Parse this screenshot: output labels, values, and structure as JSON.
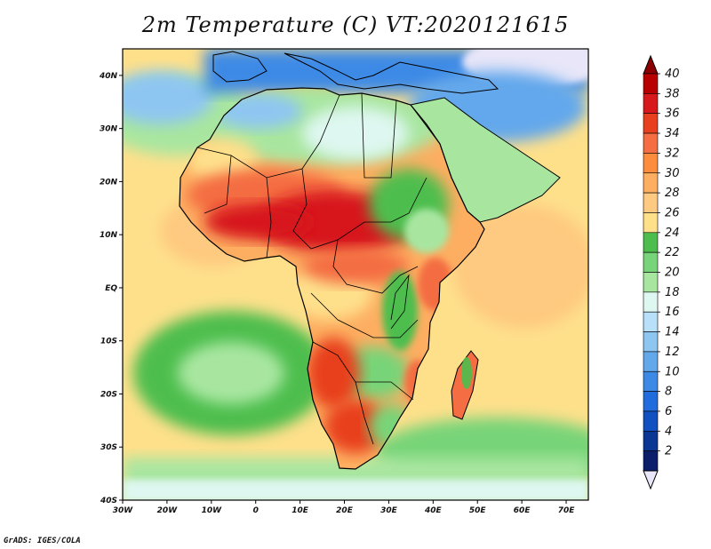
{
  "title": "2m Temperature (C) VT:2020121615",
  "footer": "GrADS: IGES/COLA",
  "map": {
    "lon_range": [
      -30,
      75
    ],
    "lat_range": [
      -40,
      45
    ],
    "x_ticks": [
      {
        "lon": -30,
        "label": "30W"
      },
      {
        "lon": -20,
        "label": "20W"
      },
      {
        "lon": -10,
        "label": "10W"
      },
      {
        "lon": 0,
        "label": "0"
      },
      {
        "lon": 10,
        "label": "10E"
      },
      {
        "lon": 20,
        "label": "20E"
      },
      {
        "lon": 30,
        "label": "30E"
      },
      {
        "lon": 40,
        "label": "40E"
      },
      {
        "lon": 50,
        "label": "50E"
      },
      {
        "lon": 60,
        "label": "60E"
      },
      {
        "lon": 70,
        "label": "70E"
      }
    ],
    "y_ticks": [
      {
        "lat": 40,
        "label": "40N"
      },
      {
        "lat": 30,
        "label": "30N"
      },
      {
        "lat": 20,
        "label": "20N"
      },
      {
        "lat": 10,
        "label": "10N"
      },
      {
        "lat": 0,
        "label": "EQ"
      },
      {
        "lat": -10,
        "label": "10S"
      },
      {
        "lat": -20,
        "label": "20S"
      },
      {
        "lat": -30,
        "label": "30S"
      },
      {
        "lat": -40,
        "label": "40S"
      }
    ],
    "ocean_color": "#fee08b",
    "land_color": "#fdae61"
  },
  "colorbar": {
    "labels": [
      "40",
      "38",
      "36",
      "34",
      "32",
      "30",
      "28",
      "26",
      "24",
      "22",
      "20",
      "18",
      "16",
      "14",
      "12",
      "10",
      "8",
      "6",
      "4",
      "2"
    ],
    "colors": [
      "#b80000",
      "#d7191c",
      "#e8401e",
      "#f46d43",
      "#fb8d3c",
      "#fdae61",
      "#fec980",
      "#fee08b",
      "#4dbe4d",
      "#78d478",
      "#a8e6a0",
      "#def7f0",
      "#b8e0f8",
      "#8ec6f2",
      "#64a8ec",
      "#3c8ae6",
      "#206cdc",
      "#1050c0",
      "#0a3694",
      "#0a1e6c"
    ],
    "top_arrow_color": "#8b0000",
    "bottom_arrow_color": "#e8e6f8"
  }
}
